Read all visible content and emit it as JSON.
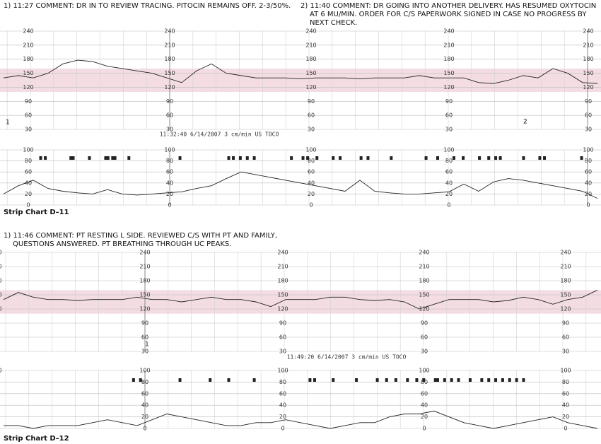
{
  "strips": [
    {
      "annotations": [
        [
          "1) 11:27 COMMENT: DR IN TO REVIEW TRACING. PITOCIN REMAINS OFF. 2-3/50%."
        ],
        [
          "2) 11:40 COMMENT: DR GOING INTO ANOTHER DELIVERY. HAS RESUMED OXYTOCIN",
          "AT 6 MU/MIN. ORDER FOR C/S PAPERWORK SIGNED IN CASE NO PROGRESS BY",
          "NEXT CHECK."
        ]
      ],
      "footer": "11:32:40 6/14/2007 3 cm/min US TOCO",
      "markers": [
        "1",
        "2"
      ],
      "caption": "Strip Chart D–11",
      "fhr": [
        140,
        145,
        140,
        150,
        170,
        178,
        175,
        165,
        160,
        155,
        150,
        140,
        130,
        155,
        170,
        150,
        145,
        140,
        140,
        140,
        138,
        140,
        140,
        140,
        138,
        140,
        140,
        140,
        145,
        140,
        140,
        140,
        130,
        128,
        135,
        145,
        140,
        160,
        150,
        130,
        128
      ],
      "uc": [
        20,
        35,
        45,
        30,
        25,
        22,
        20,
        28,
        20,
        18,
        20,
        22,
        24,
        30,
        35,
        48,
        60,
        55,
        50,
        45,
        40,
        35,
        30,
        25,
        45,
        25,
        22,
        20,
        20,
        22,
        24,
        38,
        25,
        42,
        48,
        45,
        40,
        35,
        30,
        25,
        12
      ],
      "events_s": [
        16,
        18,
        29,
        30,
        37,
        44,
        45,
        47,
        48,
        54,
        76,
        97,
        99,
        102,
        105,
        108,
        124,
        129,
        131,
        135,
        142,
        145,
        154,
        157,
        167,
        182,
        187,
        194,
        198,
        205,
        209,
        212,
        214,
        224,
        231,
        233,
        249
      ]
    },
    {
      "annotations": [
        [
          "1) 11:46 COMMENT: PT RESTING L SIDE. REVIEWED C/S WITH PT AND FAMILY,",
          "QUESTIONS ANSWERED. PT BREATHING THROUGH UC PEAKS."
        ]
      ],
      "footer": "11:49:20 6/14/2007 3 cm/min US TOCO",
      "markers": [
        "1"
      ],
      "caption": "Strip Chart D–12",
      "fhr": [
        140,
        155,
        145,
        140,
        140,
        138,
        140,
        140,
        140,
        145,
        140,
        140,
        135,
        140,
        145,
        140,
        140,
        135,
        125,
        140,
        140,
        140,
        145,
        145,
        140,
        138,
        140,
        135,
        120,
        130,
        140,
        140,
        140,
        135,
        138,
        145,
        140,
        130,
        140,
        145,
        160
      ],
      "uc": [
        5,
        5,
        0,
        5,
        5,
        5,
        10,
        15,
        10,
        5,
        15,
        25,
        20,
        15,
        10,
        5,
        5,
        10,
        10,
        15,
        10,
        5,
        0,
        5,
        10,
        10,
        20,
        25,
        25,
        30,
        20,
        10,
        5,
        0,
        5,
        10,
        15,
        20,
        10,
        5,
        0
      ],
      "events_s": [
        56,
        59,
        76,
        89,
        97,
        108,
        132,
        134,
        142,
        152,
        161,
        165,
        169,
        174,
        178,
        181,
        186,
        187,
        190,
        193,
        196,
        201,
        206,
        209,
        212,
        215,
        218,
        221,
        224
      ]
    }
  ],
  "fhr_ticks": [
    240,
    210,
    180,
    150,
    120,
    90,
    60,
    30
  ],
  "uc_ticks": [
    100,
    80,
    60,
    40,
    20,
    0
  ],
  "normal_band": [
    110,
    160
  ]
}
